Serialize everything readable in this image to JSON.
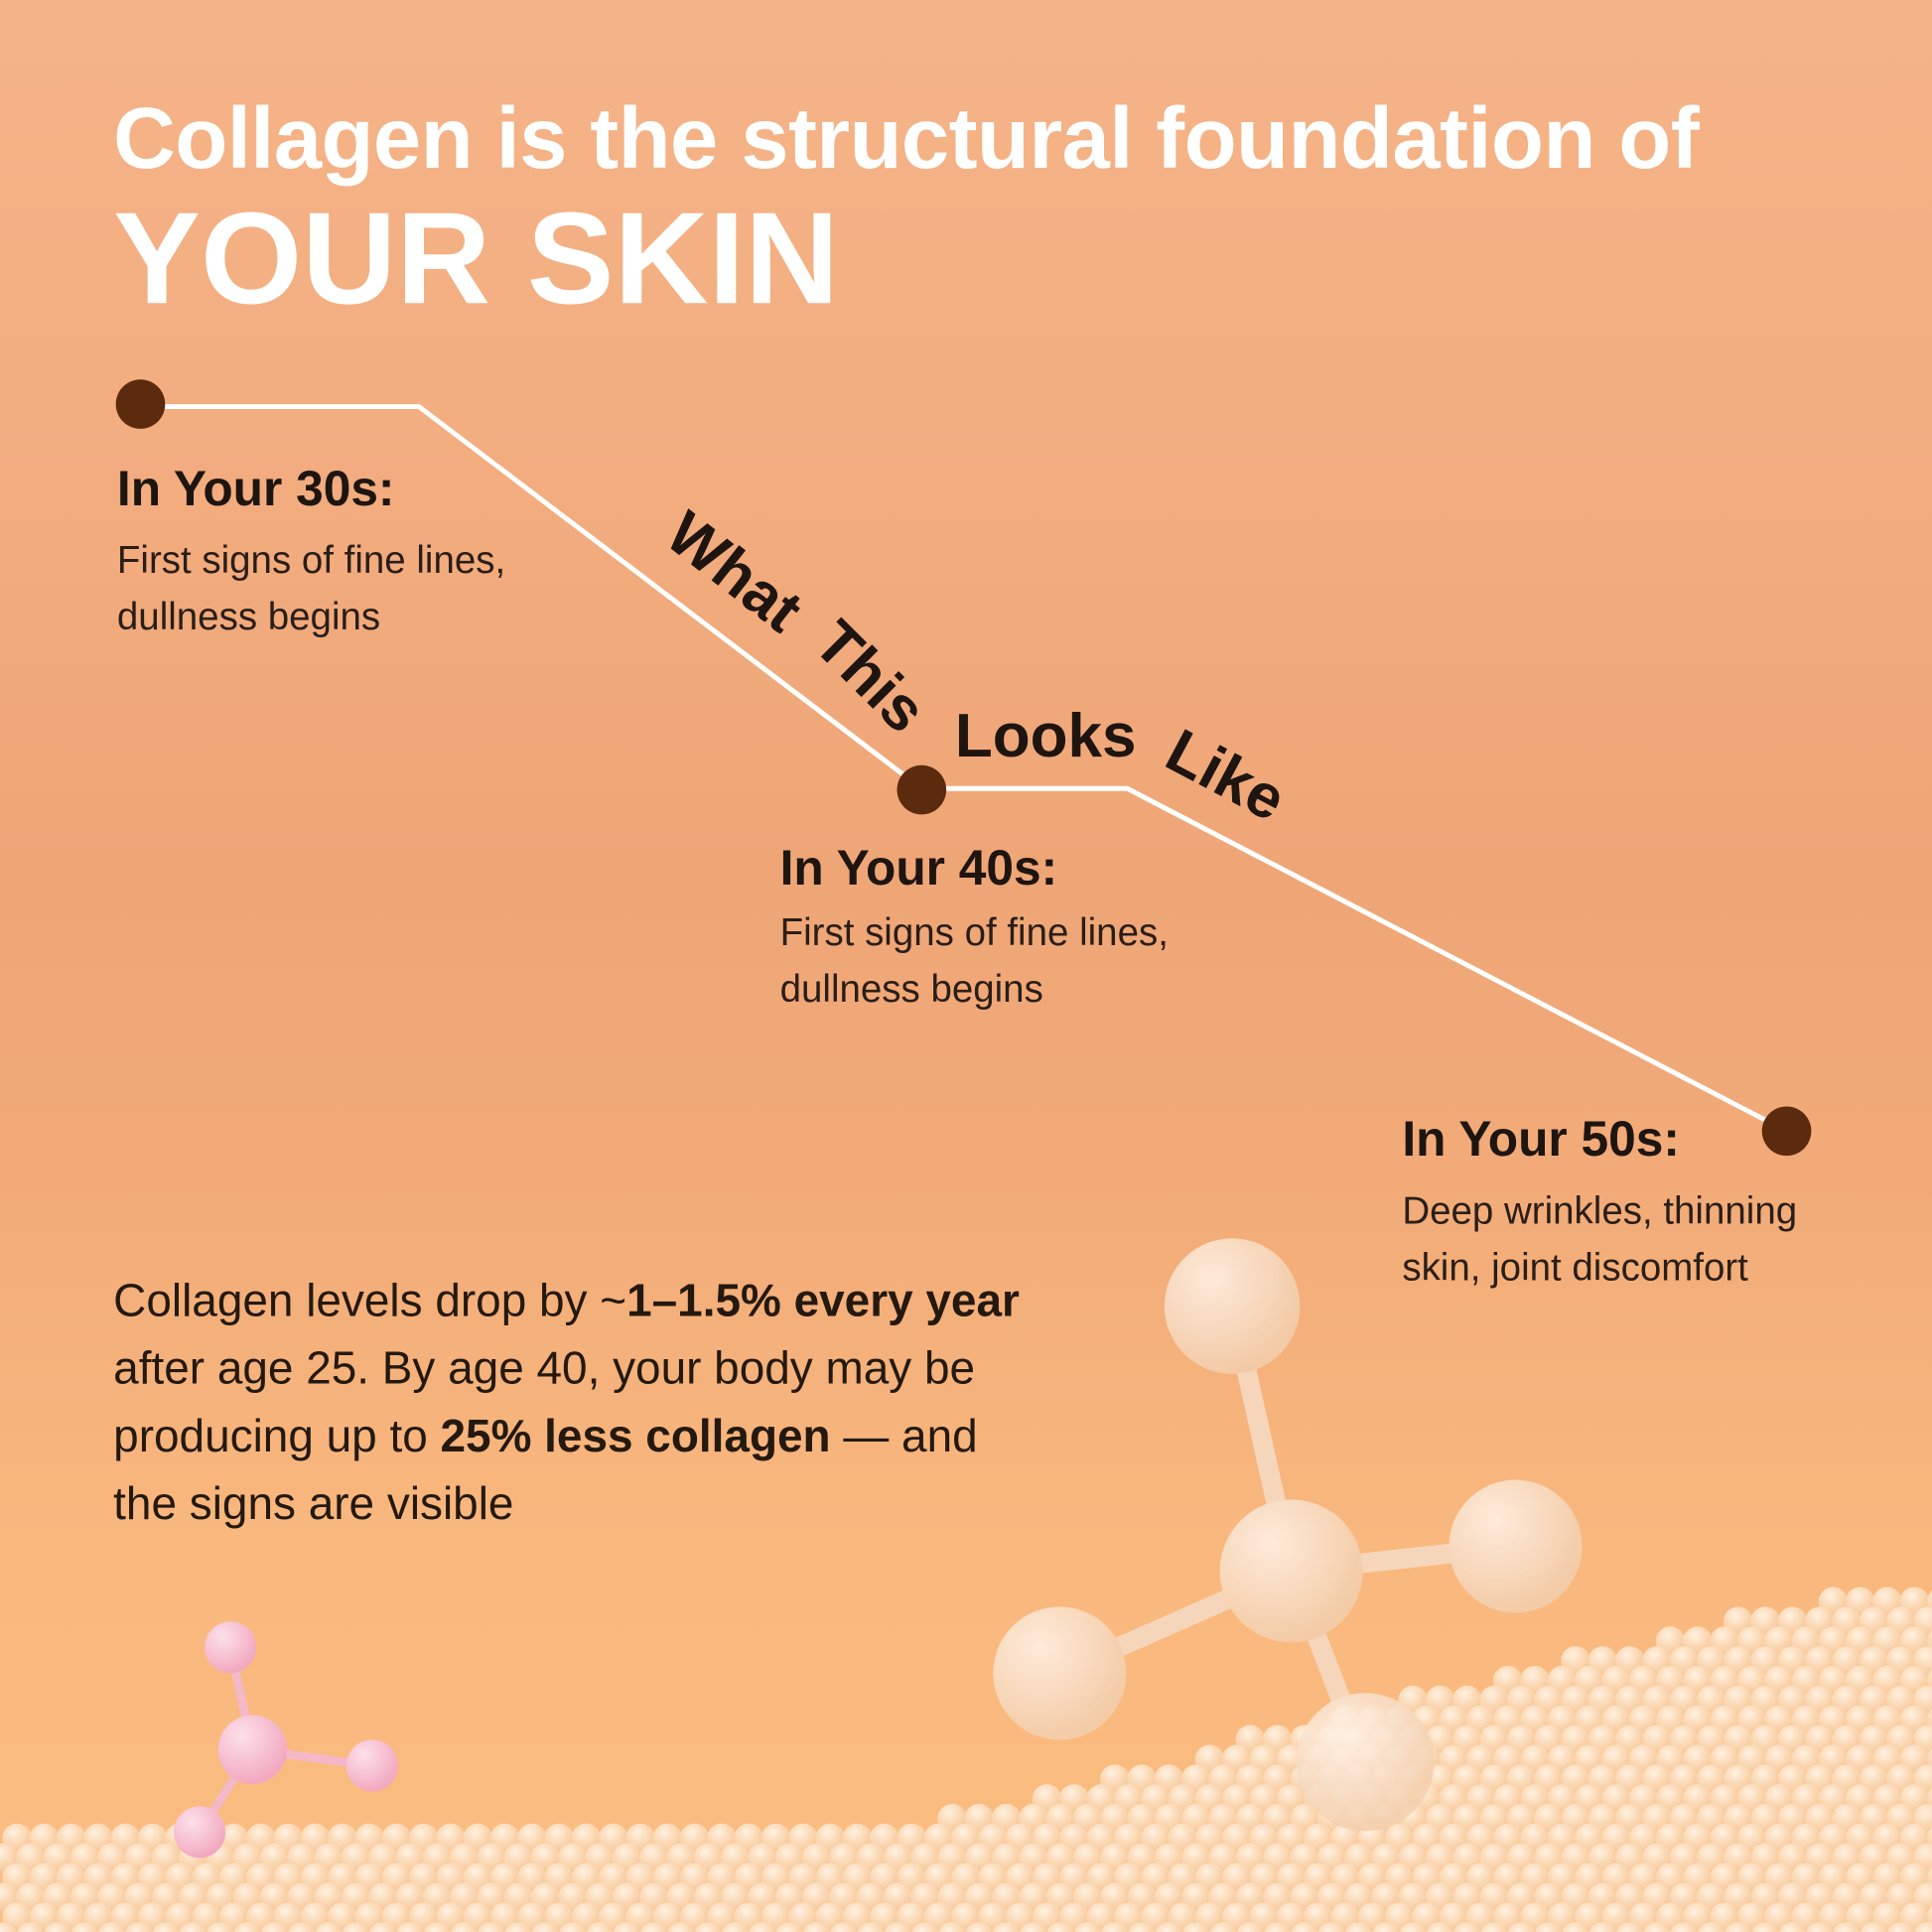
{
  "title": {
    "line1": "Collagen is the structural foundation of",
    "line2": "YOUR SKIN"
  },
  "curved_label": [
    "What",
    "This",
    "Looks",
    "Like"
  ],
  "stages": [
    {
      "heading": "In Your 30s:",
      "line1": "First signs of fine lines,",
      "line2": "dullness begins"
    },
    {
      "heading": "In Your 40s:",
      "line1": "First signs of fine lines,",
      "line2": "dullness begins"
    },
    {
      "heading": "In Your 50s:",
      "line1": "Deep wrinkles, thinning",
      "line2": "skin, joint discomfort"
    }
  ],
  "paragraph": {
    "p1": "Collagen levels drop by ~",
    "b1": "1–1.5% every year",
    "p2": " after age 25. By age 40, your body may be producing up to ",
    "b2": "25% less collagen",
    "p3": " — and the signs are visible"
  },
  "colors": {
    "dot": "#5c2a0c",
    "line": "#ffffff",
    "text": "#1e1510",
    "background": "#f0a877"
  }
}
